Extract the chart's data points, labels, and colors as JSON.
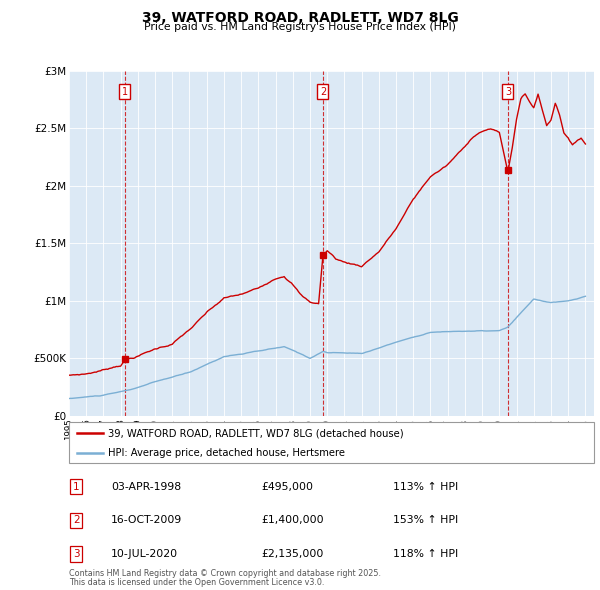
{
  "title": "39, WATFORD ROAD, RADLETT, WD7 8LG",
  "subtitle": "Price paid vs. HM Land Registry's House Price Index (HPI)",
  "footer1": "Contains HM Land Registry data © Crown copyright and database right 2025.",
  "footer2": "This data is licensed under the Open Government Licence v3.0.",
  "legend1": "39, WATFORD ROAD, RADLETT, WD7 8LG (detached house)",
  "legend2": "HPI: Average price, detached house, Hertsmere",
  "sale1_date": "03-APR-1998",
  "sale1_price": 495000,
  "sale1_hpi": "113% ↑ HPI",
  "sale2_date": "16-OCT-2009",
  "sale2_price": 1400000,
  "sale2_hpi": "153% ↑ HPI",
  "sale3_date": "10-JUL-2020",
  "sale3_price": 2135000,
  "sale3_hpi": "118% ↑ HPI",
  "sale_color": "#cc0000",
  "hpi_color": "#7bafd4",
  "chart_bg": "#dce9f5",
  "background": "#ffffff",
  "grid_color": "#ffffff",
  "ylim": [
    0,
    3000000
  ],
  "yticks": [
    0,
    500000,
    1000000,
    1500000,
    2000000,
    2500000,
    3000000
  ],
  "ytick_labels": [
    "£0",
    "£500K",
    "£1M",
    "£1.5M",
    "£2M",
    "£2.5M",
    "£3M"
  ],
  "sale_years": [
    1998.25,
    2009.75,
    2020.5
  ],
  "sale_prices": [
    495000,
    1400000,
    2135000
  ],
  "vline_years": [
    1998.25,
    2009.75,
    2020.5
  ],
  "sale_labels": [
    "1",
    "2",
    "3"
  ]
}
